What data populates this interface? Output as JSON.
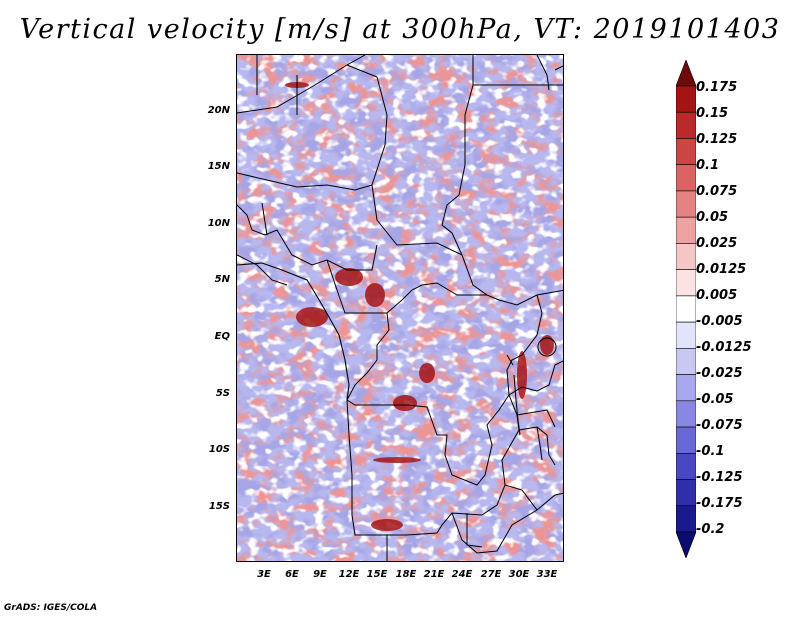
{
  "title": "Vertical velocity [m/s] at 300hPa, VT: 2019101403",
  "lat_labels": [
    "20N",
    "15N",
    "10N",
    "5N",
    "EQ",
    "5S",
    "10S",
    "15S"
  ],
  "lon_labels": [
    "3E",
    "6E",
    "9E",
    "12E",
    "15E",
    "18E",
    "21E",
    "24E",
    "27E",
    "30E",
    "33E"
  ],
  "colorbar": {
    "labels": [
      "0.175",
      "0.15",
      "0.125",
      "0.1",
      "0.075",
      "0.05",
      "0.025",
      "0.0125",
      "0.005",
      "-0.005",
      "-0.0125",
      "-0.025",
      "-0.05",
      "-0.075",
      "-0.1",
      "-0.125",
      "-0.175",
      "-0.2"
    ],
    "colors": [
      "#6e0a0a",
      "#a51414",
      "#bb2a2a",
      "#cc4545",
      "#da6464",
      "#e58383",
      "#eea3a3",
      "#f5c6c6",
      "#fbe3e3",
      "#ffffff",
      "#e3e3fb",
      "#c8c8f3",
      "#a8a8ee",
      "#8888e4",
      "#6868d6",
      "#4848c4",
      "#2e2eaa",
      "#1a1a8e",
      "#0c0c6e"
    ]
  },
  "credit": "GrADS: IGES/COLA"
}
